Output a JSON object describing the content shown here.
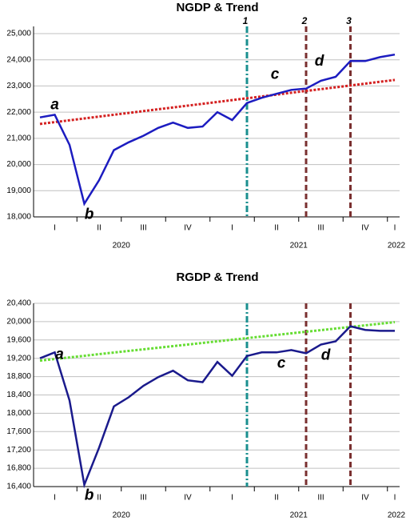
{
  "chart_data": [
    {
      "type": "line",
      "title": "NGDP & Trend",
      "categories": [
        null,
        "I",
        null,
        null,
        "II",
        null,
        null,
        "III",
        null,
        null,
        "IV",
        null,
        null,
        "I",
        null,
        null,
        "II",
        null,
        null,
        "III",
        null,
        null,
        "IV",
        null,
        "I"
      ],
      "year_labels": [
        "2020",
        "2021",
        "2022"
      ],
      "ylim": [
        18000,
        25000
      ],
      "yticks": [
        {
          "value": 18000,
          "label": "18,000"
        },
        {
          "value": 19000,
          "label": "19,000"
        },
        {
          "value": 20000,
          "label": "20,000"
        },
        {
          "value": 21000,
          "label": "21,000"
        },
        {
          "value": 22000,
          "label": "22,000"
        },
        {
          "value": 23000,
          "label": "23,000"
        },
        {
          "value": 24000,
          "label": "24,000"
        },
        {
          "value": 25000,
          "label": "25,000"
        }
      ],
      "grid": true,
      "series": [
        {
          "color": "#1c1cc0",
          "style": "solid",
          "values": [
            21800,
            21900,
            20750,
            18500,
            19400,
            20550,
            20850,
            21100,
            21400,
            21600,
            21400,
            21450,
            22000,
            21700,
            22350,
            22550,
            22700,
            22850,
            22900,
            23200,
            23350,
            23950,
            23950,
            24100,
            24200
          ]
        },
        {
          "color": "#d42020",
          "style": "dotted",
          "values": [
            21550,
            21620,
            21690,
            21760,
            21830,
            21900,
            21970,
            22040,
            22110,
            22180,
            22250,
            22320,
            22390,
            22460,
            22530,
            22600,
            22670,
            22740,
            22810,
            22880,
            22950,
            23020,
            23090,
            23160,
            23230
          ]
        }
      ],
      "vlines": [
        {
          "at": 14,
          "label": "1",
          "color": "#1a8f8f",
          "style": "dashdot"
        },
        {
          "at": 18,
          "label": "2",
          "color": "#7a3030",
          "style": "dashed"
        },
        {
          "at": 21,
          "label": "3",
          "color": "#7a3030",
          "style": "dashed"
        }
      ],
      "annotations": [
        {
          "text": "a",
          "index": 1,
          "place": "above"
        },
        {
          "text": "b",
          "index": 3,
          "place": "below"
        },
        {
          "text": "c",
          "index": 16,
          "place": "above"
        },
        {
          "text": "d",
          "index": 19,
          "place": "above"
        }
      ]
    },
    {
      "type": "line",
      "title": "RGDP & Trend",
      "categories": [
        null,
        "I",
        null,
        null,
        "II",
        null,
        null,
        "III",
        null,
        null,
        "IV",
        null,
        null,
        "I",
        null,
        null,
        "II",
        null,
        null,
        "III",
        null,
        null,
        "IV",
        null,
        "I"
      ],
      "year_labels": [
        "2020",
        "2021",
        "2022"
      ],
      "ylim": [
        16400,
        20400
      ],
      "yticks": [
        {
          "value": 16400,
          "label": "16,400"
        },
        {
          "value": 16800,
          "label": "16,800"
        },
        {
          "value": 17200,
          "label": "17,200"
        },
        {
          "value": 17600,
          "label": "17,600"
        },
        {
          "value": 18000,
          "label": "18,000"
        },
        {
          "value": 18400,
          "label": "18,400"
        },
        {
          "value": 18800,
          "label": "18,800"
        },
        {
          "value": 19200,
          "label": "19,200"
        },
        {
          "value": 19600,
          "label": "19,600"
        },
        {
          "value": 20000,
          "label": "20,000"
        },
        {
          "value": 20400,
          "label": "20,400"
        }
      ],
      "grid": true,
      "series": [
        {
          "color": "#1a1a8c",
          "style": "solid",
          "values": [
            19200,
            19330,
            18280,
            16440,
            17250,
            18150,
            18350,
            18600,
            18790,
            18930,
            18720,
            18680,
            19120,
            18820,
            19250,
            19330,
            19330,
            19380,
            19310,
            19500,
            19570,
            19900,
            19820,
            19800,
            19800
          ]
        },
        {
          "color": "#66dd33",
          "style": "dotted",
          "values": [
            19150,
            19185,
            19220,
            19255,
            19290,
            19325,
            19360,
            19395,
            19430,
            19465,
            19500,
            19535,
            19570,
            19605,
            19640,
            19675,
            19710,
            19745,
            19780,
            19815,
            19850,
            19885,
            19920,
            19955,
            19990
          ]
        }
      ],
      "vlines": [
        {
          "at": 14,
          "color": "#1a8f8f",
          "style": "dashdot"
        },
        {
          "at": 18,
          "color": "#7a3030",
          "style": "dashed"
        },
        {
          "at": 21,
          "color": "#7a3030",
          "style": "dashed"
        }
      ],
      "annotations": [
        {
          "text": "a",
          "index": 1,
          "place": "right"
        },
        {
          "text": "b",
          "index": 3,
          "place": "below"
        },
        {
          "text": "c",
          "index": 16,
          "place": "below"
        },
        {
          "text": "d",
          "index": 19,
          "place": "below"
        }
      ]
    }
  ]
}
